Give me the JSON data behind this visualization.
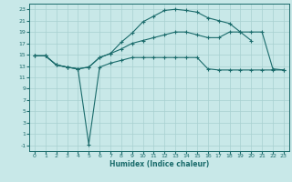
{
  "xlabel": "Humidex (Indice chaleur)",
  "bg_color": "#c8e8e8",
  "grid_color": "#a8d0d0",
  "line_color": "#1a6b6b",
  "xlim": [
    -0.5,
    23.5
  ],
  "ylim": [
    -2,
    24
  ],
  "xticks": [
    0,
    1,
    2,
    3,
    4,
    5,
    6,
    7,
    8,
    9,
    10,
    11,
    12,
    13,
    14,
    15,
    16,
    17,
    18,
    19,
    20,
    21,
    22,
    23
  ],
  "yticks": [
    -1,
    1,
    3,
    5,
    7,
    9,
    11,
    13,
    15,
    17,
    19,
    21,
    23
  ],
  "line1_x": [
    0,
    1,
    2,
    3,
    4,
    5,
    6,
    7,
    8,
    9,
    10,
    11,
    12,
    13,
    14,
    15,
    16,
    17,
    18,
    19,
    20
  ],
  "line1_y": [
    14.8,
    14.8,
    13.2,
    12.8,
    12.5,
    12.8,
    14.5,
    15.2,
    17.2,
    18.8,
    20.8,
    21.8,
    22.8,
    23.0,
    22.8,
    22.5,
    21.5,
    21.0,
    20.5,
    19.0,
    17.5
  ],
  "line2_x": [
    0,
    1,
    2,
    3,
    4,
    5,
    6,
    7,
    8,
    9,
    10,
    11,
    12,
    13,
    14,
    15,
    16,
    17,
    18,
    19,
    20,
    21,
    22,
    23
  ],
  "line2_y": [
    14.8,
    14.8,
    13.2,
    12.8,
    12.5,
    -0.8,
    12.8,
    13.5,
    14.0,
    14.5,
    14.5,
    14.5,
    14.5,
    14.5,
    14.5,
    14.5,
    12.5,
    12.3,
    12.3,
    12.3,
    12.3,
    12.3,
    12.3,
    12.3
  ],
  "line3_x": [
    0,
    1,
    2,
    3,
    4,
    5,
    6,
    7,
    8,
    9,
    10,
    11,
    12,
    13,
    14,
    15,
    16,
    17,
    18,
    19,
    20,
    21,
    22,
    23
  ],
  "line3_y": [
    14.8,
    14.8,
    13.2,
    12.8,
    12.5,
    12.8,
    14.5,
    15.2,
    16.0,
    17.0,
    17.5,
    18.0,
    18.5,
    19.0,
    19.0,
    18.5,
    18.0,
    18.0,
    19.0,
    19.0,
    19.0,
    19.0,
    12.5,
    12.3
  ]
}
